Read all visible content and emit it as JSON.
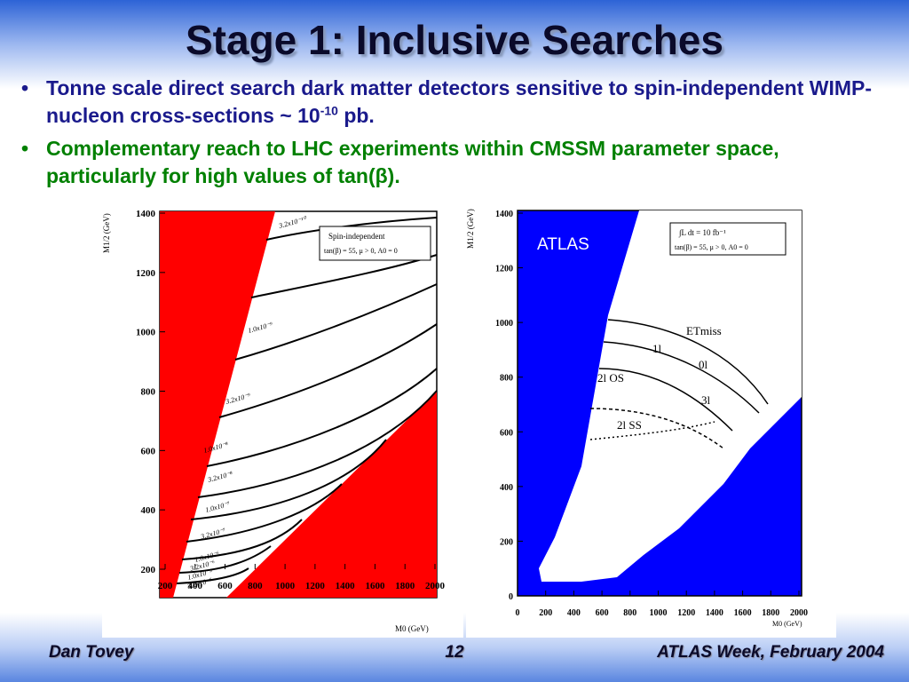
{
  "header": {
    "title": "Stage 1: Inclusive Searches"
  },
  "bullets": [
    {
      "text": "Tonne scale direct search dark matter detectors sensitive to spin-independent WIMP-nucleon cross-sections ~ 10",
      "sup": "-10",
      "tail": " pb."
    },
    {
      "text": "Complementary reach to LHC experiments within CMSSM parameter space, particularly for high values of tan(β)."
    }
  ],
  "left_plot": {
    "ylabel": "M1/2 (GeV)",
    "xlabel": "M0 (GeV)",
    "yticks": [
      "200",
      "400",
      "600",
      "800",
      "1000",
      "1200",
      "1400"
    ],
    "xticks": [
      "200",
      "400",
      "600",
      "800",
      "1000",
      "1200",
      "1400",
      "1600",
      "1800",
      "2000"
    ],
    "legend": [
      "Spin-independent",
      "tan(β) = 55, μ > 0, A0 = 0"
    ],
    "contour_labels": [
      "3.2x10⁻¹⁰",
      "1.0x10⁻⁹",
      "3.2x10⁻⁹",
      "1.0x10⁻⁸",
      "3.2x10⁻⁸",
      "1.0x10⁻⁷",
      "3.2x10⁻⁷",
      "1.0x10⁻⁶",
      "3.2x10⁻⁶",
      "1.0x10⁻⁵",
      "3.2x10⁻⁵"
    ]
  },
  "right_plot": {
    "label": "ATLAS",
    "ylabel": "M1/2 (GeV)",
    "xlabel": "M0 (GeV)",
    "yticks": [
      "0",
      "200",
      "400",
      "600",
      "800",
      "1000",
      "1200",
      "1400"
    ],
    "xticks": [
      "0",
      "200",
      "400",
      "600",
      "800",
      "1000",
      "1200",
      "1400",
      "1600",
      "1800",
      "2000"
    ],
    "legend": [
      "∫L dt = 10 fb⁻¹",
      "tan(β) = 55, μ > 0, A0 = 0"
    ],
    "channel_labels": [
      "ETmiss",
      "1l",
      "0l",
      "2l OS",
      "3l",
      "2l SS"
    ]
  },
  "footer": {
    "left": "Dan Tovey",
    "center": "12",
    "right": "ATLAS Week, February 2004"
  }
}
